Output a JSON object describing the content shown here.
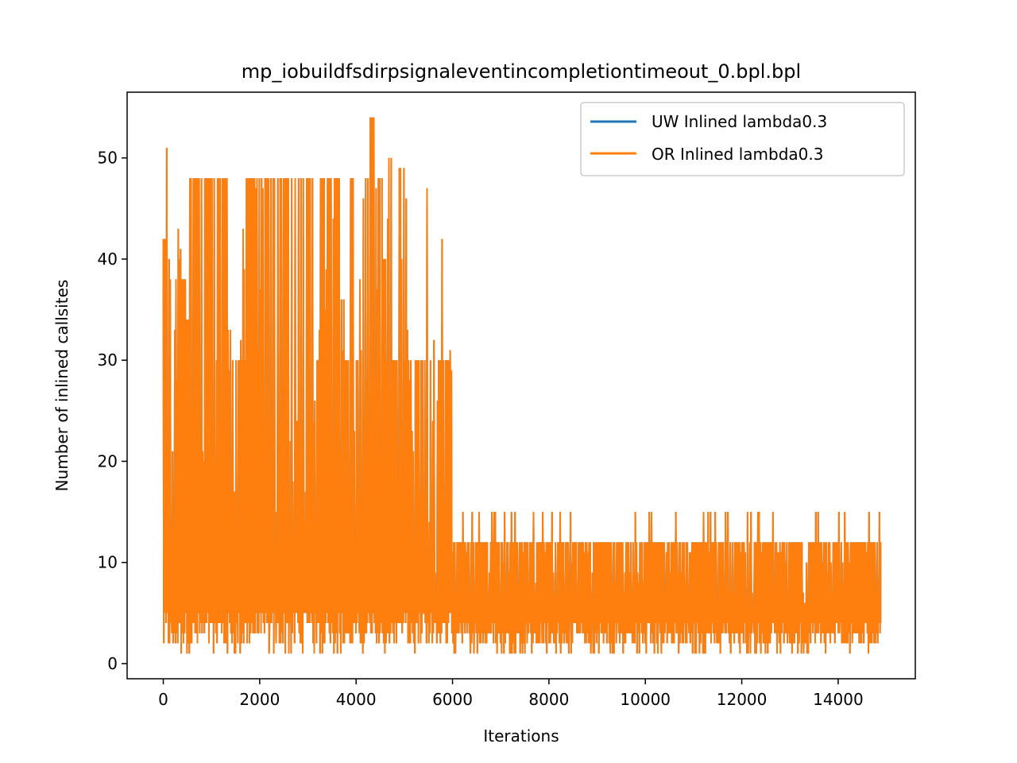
{
  "chart_data": {
    "type": "line",
    "title": "mp_iobuildfsdirpsignaleventincompletiontimeout_0.bpl.bpl",
    "xlabel": "Iterations",
    "ylabel": "Number of inlined callsites",
    "xlim": [
      -750,
      15600
    ],
    "ylim": [
      -1.5,
      56.5
    ],
    "xticks": [
      0,
      2000,
      4000,
      6000,
      8000,
      10000,
      12000,
      14000
    ],
    "yticks": [
      0,
      10,
      20,
      30,
      40,
      50
    ],
    "grid": false,
    "legend_position": "top-right",
    "x_max": 14880,
    "series": [
      {
        "name": "UW Inlined lambda0.3",
        "color": "#1f77b4",
        "note_segments": [
          {
            "x_start": 0,
            "x_end": 6000,
            "y_min": 1,
            "y_typical_max": 48,
            "peaks": [
              [
                20,
                42
              ],
              [
                80,
                51
              ],
              [
                150,
                38
              ],
              [
                250,
                38
              ],
              [
                330,
                43
              ],
              [
                420,
                38
              ],
              [
                500,
                34
              ],
              [
                580,
                48
              ],
              [
                680,
                48
              ],
              [
                780,
                48
              ],
              [
                870,
                48
              ],
              [
                960,
                48
              ],
              [
                1100,
                48
              ],
              [
                1200,
                48
              ],
              [
                1300,
                48
              ],
              [
                1350,
                33
              ],
              [
                1450,
                17
              ],
              [
                1560,
                30
              ],
              [
                1650,
                30
              ],
              [
                1760,
                48
              ],
              [
                1850,
                48
              ],
              [
                2000,
                48
              ],
              [
                2150,
                48
              ],
              [
                2250,
                48
              ],
              [
                2400,
                48
              ],
              [
                2550,
                48
              ],
              [
                2700,
                48
              ],
              [
                2850,
                48
              ],
              [
                3000,
                48
              ],
              [
                3150,
                48
              ],
              [
                3300,
                48
              ],
              [
                3450,
                48
              ],
              [
                3600,
                48
              ],
              [
                3700,
                36
              ],
              [
                3800,
                30
              ],
              [
                3900,
                48
              ],
              [
                4050,
                30
              ],
              [
                4200,
                48
              ],
              [
                4350,
                54
              ],
              [
                4500,
                48
              ],
              [
                4600,
                40
              ],
              [
                4700,
                50
              ],
              [
                4800,
                30
              ],
              [
                4950,
                49
              ],
              [
                5100,
                30
              ],
              [
                5250,
                30
              ],
              [
                5400,
                30
              ],
              [
                5550,
                30
              ],
              [
                5600,
                32
              ],
              [
                5750,
                30
              ],
              [
                5900,
                30
              ],
              [
                5980,
                31
              ]
            ]
          },
          {
            "x_start": 6000,
            "x_end": 14880,
            "y_min": 1,
            "y_typical_max": 12,
            "peaks_value": 15
          }
        ]
      },
      {
        "name": "OR Inlined lambda0.3",
        "color": "#ff7f0e",
        "same_as_previous": true
      }
    ]
  }
}
